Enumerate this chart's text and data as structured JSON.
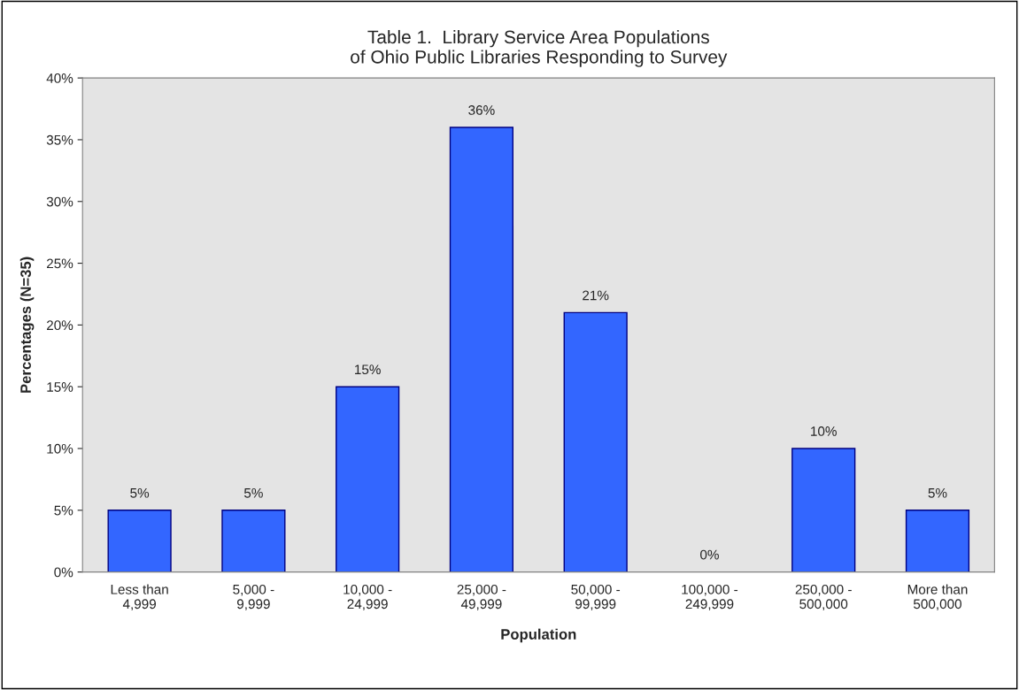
{
  "chart_data": {
    "type": "bar",
    "title": "Table 1.  Library Service Area Populations\nof Ohio Public Libraries Responding to Survey",
    "xlabel": "Population",
    "ylabel": "Percentages (N=35)",
    "categories": [
      "Less than\n4,999",
      "5,000 -\n9,999",
      "10,000 -\n24,999",
      "25,000 -\n49,999",
      "50,000 -\n99,999",
      "100,000 -\n249,999",
      "250,000 -\n500,000",
      "More than\n500,000"
    ],
    "values": [
      5,
      5,
      15,
      36,
      21,
      0,
      10,
      5
    ],
    "color": "#3366ff",
    "ylim": [
      0,
      40
    ],
    "yticks": [
      {
        "value": 0,
        "label": "0%"
      },
      {
        "value": 5,
        "label": "5%"
      },
      {
        "value": 10,
        "label": "10%"
      },
      {
        "value": 15,
        "label": "15%"
      },
      {
        "value": 20,
        "label": "20%"
      },
      {
        "value": 25,
        "label": "25%"
      },
      {
        "value": 30,
        "label": "30%"
      },
      {
        "value": 35,
        "label": "35%"
      },
      {
        "value": 40,
        "label": "40%"
      }
    ],
    "value_labels": [
      "5%",
      "5%",
      "15%",
      "36%",
      "21%",
      "0%",
      "10%",
      "5%"
    ],
    "grid": false,
    "legend": false
  }
}
